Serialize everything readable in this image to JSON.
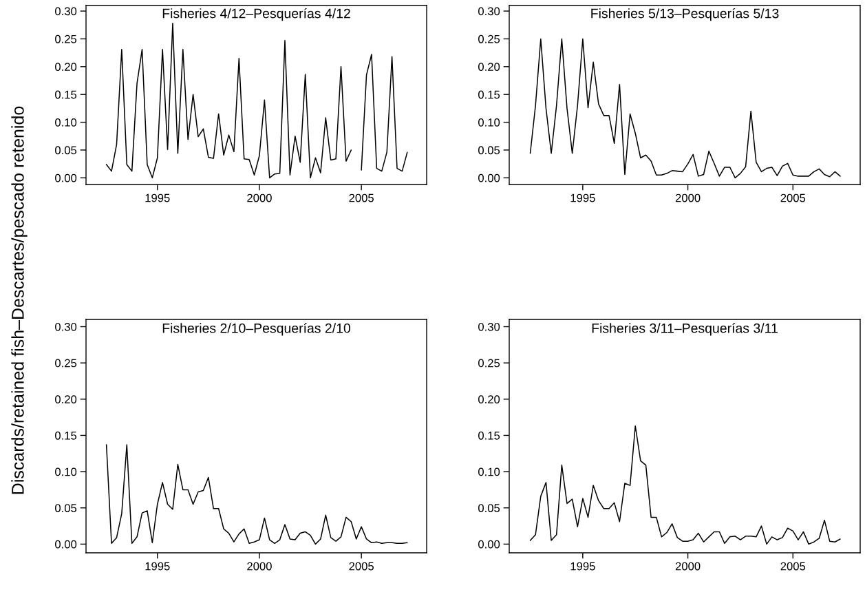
{
  "chart_data": [
    {
      "type": "line",
      "title": "Fisheries 4/12–Pesquerías 4/12",
      "ylabel": "Discards/retained fish–Descartes/pescado retenido",
      "x": [
        1992.5,
        1992.75,
        1993,
        1993.25,
        1993.5,
        1993.75,
        1994,
        1994.25,
        1994.5,
        1994.75,
        1995,
        1995.25,
        1995.5,
        1995.75,
        1996,
        1996.25,
        1996.5,
        1996.75,
        1997,
        1997.25,
        1997.5,
        1997.75,
        1998,
        1998.25,
        1998.5,
        1998.75,
        1999,
        1999.25,
        1999.5,
        1999.75,
        2000,
        2000.25,
        2000.5,
        2000.75,
        2001,
        2001.25,
        2001.5,
        2001.75,
        2002,
        2002.25,
        2002.5,
        2002.75,
        2003,
        2003.25,
        2003.5,
        2003.75,
        2004,
        2004.25,
        2004.5,
        2004.75,
        2005,
        2005.25,
        2005.5,
        2005.75,
        2006,
        2006.25,
        2006.5,
        2006.75,
        2007,
        2007.25
      ],
      "series": [
        {
          "color": "#000000",
          "values": [
            0.024,
            0.012,
            0.06,
            0.231,
            0.024,
            0.012,
            0.17,
            0.231,
            0.024,
            0.0,
            0.036,
            0.231,
            0.051,
            0.278,
            0.044,
            0.231,
            0.069,
            0.15,
            0.074,
            0.088,
            0.037,
            0.035,
            0.115,
            0.041,
            0.077,
            0.047,
            0.215,
            0.034,
            0.033,
            0.005,
            0.04,
            0.14,
            0.0,
            0.007,
            0.008,
            0.247,
            0.005,
            0.075,
            0.028,
            0.186,
            0.0,
            0.036,
            0.009,
            0.108,
            0.032,
            0.034,
            0.2,
            0.03,
            0.05,
            null,
            0.014,
            0.185,
            0.222,
            0.017,
            0.012,
            0.046,
            0.218,
            0.017,
            0.012,
            0.046
          ]
        }
      ],
      "xlim": [
        1991.5,
        2008.2
      ],
      "xticks": [
        1995,
        2000,
        2005
      ],
      "ylim": [
        -0.012,
        0.31
      ],
      "yticks": [
        {
          "value": 0,
          "label": "0.00"
        },
        {
          "value": 0.05,
          "label": "0.05"
        },
        {
          "value": 0.1,
          "label": "0.10"
        },
        {
          "value": 0.15,
          "label": "0.15"
        },
        {
          "value": 0.2,
          "label": "0.20"
        },
        {
          "value": 0.25,
          "label": "0.25"
        },
        {
          "value": 0.3,
          "label": "0.30"
        }
      ],
      "grid": false,
      "legend": false,
      "marker": "none",
      "line_style": "solid"
    },
    {
      "type": "line",
      "title": "Fisheries 5/13–Pesquerías 5/13",
      "x": [
        1992.5,
        1992.75,
        1993,
        1993.25,
        1993.5,
        1993.75,
        1994,
        1994.25,
        1994.5,
        1994.75,
        1995,
        1995.25,
        1995.5,
        1995.75,
        1996,
        1996.25,
        1996.5,
        1996.75,
        1997,
        1997.25,
        1997.5,
        1997.75,
        1998,
        1998.25,
        1998.5,
        1998.75,
        1999,
        1999.25,
        1999.5,
        1999.75,
        2000,
        2000.25,
        2000.5,
        2000.75,
        2001,
        2001.25,
        2001.5,
        2001.75,
        2002,
        2002.25,
        2002.5,
        2002.75,
        2003,
        2003.25,
        2003.5,
        2003.75,
        2004,
        2004.25,
        2004.5,
        2004.75,
        2005,
        2005.25,
        2005.5,
        2005.75,
        2006,
        2006.25,
        2006.5,
        2006.75,
        2007,
        2007.25
      ],
      "series": [
        {
          "color": "#000000",
          "values": [
            0.044,
            0.13,
            0.25,
            0.125,
            0.044,
            0.13,
            0.25,
            0.125,
            0.044,
            0.13,
            0.25,
            0.126,
            0.208,
            0.133,
            0.112,
            0.112,
            0.062,
            0.168,
            0.006,
            0.115,
            0.08,
            0.036,
            0.041,
            0.03,
            0.005,
            0.005,
            0.008,
            0.013,
            0.012,
            0.011,
            0.025,
            0.042,
            0.003,
            0.006,
            0.048,
            0.026,
            0.003,
            0.019,
            0.019,
            0.0,
            0.008,
            0.02,
            0.12,
            0.028,
            0.011,
            0.017,
            0.019,
            0.004,
            0.021,
            0.026,
            0.005,
            0.003,
            0.003,
            0.003,
            0.011,
            0.016,
            0.006,
            0.002,
            0.011,
            0.003
          ]
        }
      ],
      "xlim": [
        1991.5,
        2008.2
      ],
      "xticks": [
        1995,
        2000,
        2005
      ],
      "ylim": [
        -0.012,
        0.31
      ],
      "yticks": [
        {
          "value": 0,
          "label": "0.00"
        },
        {
          "value": 0.05,
          "label": "0.05"
        },
        {
          "value": 0.1,
          "label": "0.10"
        },
        {
          "value": 0.15,
          "label": "0.15"
        },
        {
          "value": 0.2,
          "label": "0.20"
        },
        {
          "value": 0.25,
          "label": "0.25"
        },
        {
          "value": 0.3,
          "label": "0.30"
        }
      ],
      "grid": false,
      "legend": false,
      "marker": "none",
      "line_style": "solid"
    },
    {
      "type": "line",
      "title": "Fisheries 2/10–Pesquerías 2/10",
      "x": [
        1992.5,
        1992.75,
        1993,
        1993.25,
        1993.5,
        1993.75,
        1994,
        1994.25,
        1994.5,
        1994.75,
        1995,
        1995.25,
        1995.5,
        1995.75,
        1996,
        1996.25,
        1996.5,
        1996.75,
        1997,
        1997.25,
        1997.5,
        1997.75,
        1998,
        1998.25,
        1998.5,
        1998.75,
        1999,
        1999.25,
        1999.5,
        1999.75,
        2000,
        2000.25,
        2000.5,
        2000.75,
        2001,
        2001.25,
        2001.5,
        2001.75,
        2002,
        2002.25,
        2002.5,
        2002.75,
        2003,
        2003.25,
        2003.5,
        2003.75,
        2004,
        2004.25,
        2004.5,
        2004.75,
        2005,
        2005.25,
        2005.5,
        2005.75,
        2006,
        2006.25,
        2006.5,
        2006.75,
        2007,
        2007.25
      ],
      "series": [
        {
          "color": "#000000",
          "values": [
            0.137,
            0.001,
            0.009,
            0.042,
            0.137,
            0.001,
            0.01,
            0.043,
            0.046,
            0.002,
            0.055,
            0.085,
            0.055,
            0.048,
            0.11,
            0.075,
            0.075,
            0.055,
            0.072,
            0.074,
            0.092,
            0.049,
            0.049,
            0.021,
            0.015,
            0.003,
            0.014,
            0.021,
            0.001,
            0.003,
            0.006,
            0.036,
            0.006,
            0.001,
            0.006,
            0.027,
            0.007,
            0.006,
            0.015,
            0.017,
            0.012,
            0.0,
            0.007,
            0.04,
            0.009,
            0.004,
            0.01,
            0.037,
            0.031,
            0.007,
            0.024,
            0.007,
            0.002,
            0.003,
            0.001,
            0.002,
            0.002,
            0.001,
            0.001,
            0.002
          ]
        }
      ],
      "xlim": [
        1991.5,
        2008.2
      ],
      "xticks": [
        1995,
        2000,
        2005
      ],
      "ylim": [
        -0.012,
        0.31
      ],
      "yticks": [
        {
          "value": 0,
          "label": "0.00"
        },
        {
          "value": 0.05,
          "label": "0.05"
        },
        {
          "value": 0.1,
          "label": "0.10"
        },
        {
          "value": 0.15,
          "label": "0.15"
        },
        {
          "value": 0.2,
          "label": "0.20"
        },
        {
          "value": 0.25,
          "label": "0.25"
        },
        {
          "value": 0.3,
          "label": "0.30"
        }
      ],
      "grid": false,
      "legend": false,
      "marker": "none",
      "line_style": "solid"
    },
    {
      "type": "line",
      "title": "Fisheries 3/11–Pesquerías 3/11",
      "x": [
        1992.5,
        1992.75,
        1993,
        1993.25,
        1993.5,
        1993.75,
        1994,
        1994.25,
        1994.5,
        1994.75,
        1995,
        1995.25,
        1995.5,
        1995.75,
        1996,
        1996.25,
        1996.5,
        1996.75,
        1997,
        1997.25,
        1997.5,
        1997.75,
        1998,
        1998.25,
        1998.5,
        1998.75,
        1999,
        1999.25,
        1999.5,
        1999.75,
        2000,
        2000.25,
        2000.5,
        2000.75,
        2001,
        2001.25,
        2001.5,
        2001.75,
        2002,
        2002.25,
        2002.5,
        2002.75,
        2003,
        2003.25,
        2003.5,
        2003.75,
        2004,
        2004.25,
        2004.5,
        2004.75,
        2005,
        2005.25,
        2005.5,
        2005.75,
        2006,
        2006.25,
        2006.5,
        2006.75,
        2007,
        2007.25
      ],
      "series": [
        {
          "color": "#000000",
          "values": [
            0.005,
            0.013,
            0.066,
            0.085,
            0.005,
            0.013,
            0.109,
            0.056,
            0.062,
            0.024,
            0.063,
            0.037,
            0.081,
            0.06,
            0.049,
            0.049,
            0.057,
            0.031,
            0.084,
            0.081,
            0.163,
            0.115,
            0.109,
            0.037,
            0.037,
            0.01,
            0.016,
            0.028,
            0.009,
            0.004,
            0.004,
            0.006,
            0.015,
            0.003,
            0.01,
            0.017,
            0.017,
            0.001,
            0.01,
            0.011,
            0.006,
            0.011,
            0.011,
            0.01,
            0.025,
            0.0,
            0.01,
            0.006,
            0.009,
            0.022,
            0.018,
            0.006,
            0.017,
            0.0,
            0.003,
            0.008,
            0.033,
            0.004,
            0.003,
            0.007
          ]
        }
      ],
      "xlim": [
        1991.5,
        2008.2
      ],
      "xticks": [
        1995,
        2000,
        2005
      ],
      "ylim": [
        -0.012,
        0.31
      ],
      "yticks": [
        {
          "value": 0,
          "label": "0.00"
        },
        {
          "value": 0.05,
          "label": "0.05"
        },
        {
          "value": 0.1,
          "label": "0.10"
        },
        {
          "value": 0.15,
          "label": "0.15"
        },
        {
          "value": 0.2,
          "label": "0.20"
        },
        {
          "value": 0.25,
          "label": "0.25"
        },
        {
          "value": 0.3,
          "label": "0.30"
        }
      ],
      "grid": false,
      "legend": false,
      "marker": "none",
      "line_style": "solid"
    }
  ]
}
